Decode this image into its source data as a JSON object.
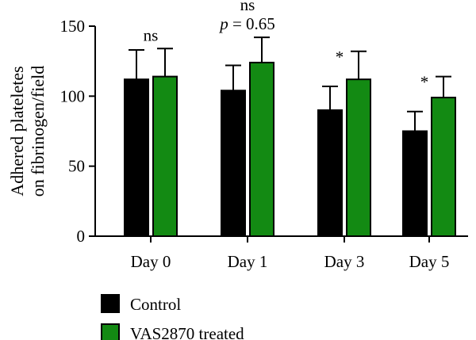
{
  "chart_data": {
    "type": "bar",
    "title": "",
    "xlabel": "",
    "ylabel_lines": [
      "Adhered plateletes",
      "on fibrinogen/field"
    ],
    "ylim": [
      0,
      150
    ],
    "yticks": [
      0,
      50,
      100,
      150
    ],
    "categories": [
      "Day 0",
      "Day 1",
      "Day 3",
      "Day 5"
    ],
    "series": [
      {
        "name": "Control",
        "color": "#000000",
        "values": [
          112,
          104,
          90,
          75
        ],
        "errors": [
          21,
          18,
          17,
          14
        ]
      },
      {
        "name": "VAS2870 treated",
        "color": "#138a13",
        "values": [
          114,
          124,
          112,
          99
        ],
        "errors": [
          20,
          18,
          20,
          15
        ]
      }
    ],
    "annotations": [
      {
        "category": "Day 0",
        "lines": [
          "ns"
        ],
        "italic_prefix": ""
      },
      {
        "category": "Day 1",
        "lines": [
          "ns",
          "p = 0.65"
        ],
        "italic_prefix": "p"
      },
      {
        "category": "Day 3",
        "lines": [
          "*"
        ],
        "italic_prefix": ""
      },
      {
        "category": "Day 5",
        "lines": [
          "*"
        ],
        "italic_prefix": ""
      }
    ],
    "legend_placement": "bottom-left",
    "grid": false
  }
}
